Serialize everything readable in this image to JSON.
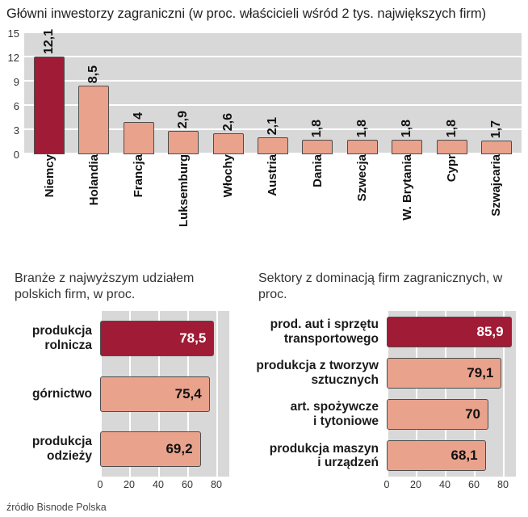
{
  "page": {
    "title": "Główni inwestorzy zagraniczni (w proc. właścicieli wśród 2 tys. największych firm)",
    "source": "źródło Bisnode Polska"
  },
  "colors": {
    "highlight": "#a01b35",
    "bar": "#e9a28c",
    "bar_border": "#4d4d4d",
    "plot_bg": "#d8d8d8",
    "grid": "#ffffff",
    "text": "#1a1a1a"
  },
  "chart_data": [
    {
      "type": "bar",
      "title": "Główni inwestorzy zagraniczni (w proc. właścicieli wśród 2 tys. największych firm)",
      "categories": [
        "Niemcy",
        "Holandia",
        "Francja",
        "Luksemburg",
        "Włochy",
        "Austria",
        "Dania",
        "Szwecja",
        "W. Brytania",
        "Cypr",
        "Szwajcaria"
      ],
      "values": [
        12.1,
        8.5,
        4,
        2.9,
        2.6,
        2.1,
        1.8,
        1.8,
        1.8,
        1.8,
        1.7
      ],
      "value_labels": [
        "12,1",
        "8,5",
        "4",
        "2,9",
        "2,6",
        "2,1",
        "1,8",
        "1,8",
        "1,8",
        "1,8",
        "1,7"
      ],
      "y_ticks": [
        0,
        3,
        6,
        9,
        12,
        15
      ],
      "ylim": [
        0,
        15
      ],
      "grid": true,
      "highlight_index": 0
    },
    {
      "type": "bar-horizontal",
      "title": "Branże z najwyższym udziałem polskich firm, w proc.",
      "categories": [
        "produkcja\nrolnicza",
        "górnictwo",
        "produkcja\nodzieży"
      ],
      "values": [
        78.5,
        75.4,
        69.2
      ],
      "value_labels": [
        "78,5",
        "75,4",
        "69,2"
      ],
      "x_ticks": [
        0,
        20,
        40,
        60,
        80
      ],
      "xlim": [
        0,
        88
      ],
      "grid": true,
      "highlight_index": 0
    },
    {
      "type": "bar-horizontal",
      "title": "Sektory z dominacją firm zagranicznych, w proc.",
      "categories": [
        "prod. aut i sprzętu\ntransportowego",
        "produkcja z tworzyw\nsztucznych",
        "art. spożywcze\ni tytoniowe",
        "produkcja maszyn\ni urządzeń"
      ],
      "values": [
        85.9,
        79.1,
        70,
        68.1
      ],
      "value_labels": [
        "85,9",
        "79,1",
        "70",
        "68,1"
      ],
      "x_ticks": [
        0,
        20,
        40,
        60,
        80
      ],
      "xlim": [
        0,
        90
      ],
      "grid": true,
      "highlight_index": 0
    }
  ]
}
